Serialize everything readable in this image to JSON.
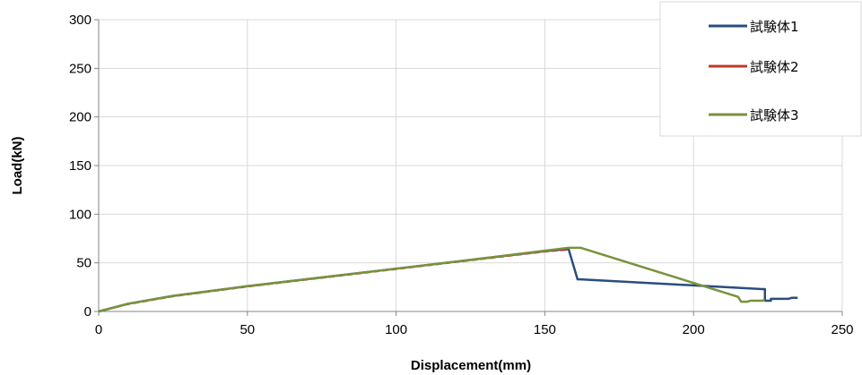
{
  "chart_data": {
    "type": "line",
    "title": "",
    "xlabel": "Displacement(mm)",
    "ylabel": "Load(kN)",
    "xlim": [
      0,
      250
    ],
    "ylim": [
      0,
      300
    ],
    "xticks": [
      0,
      50,
      100,
      150,
      200,
      250
    ],
    "yticks": [
      0,
      50,
      100,
      150,
      200,
      250,
      300
    ],
    "grid": true,
    "legend_position": "top-right",
    "series": [
      {
        "name": "試験体1",
        "color": "#2a4d7f",
        "points": [
          [
            0,
            0
          ],
          [
            10,
            8
          ],
          [
            25,
            16
          ],
          [
            50,
            26
          ],
          [
            75,
            35
          ],
          [
            100,
            44
          ],
          [
            125,
            53
          ],
          [
            150,
            62
          ],
          [
            157,
            64
          ],
          [
            158,
            64
          ],
          [
            161,
            33
          ],
          [
            162,
            33
          ],
          [
            223,
            23
          ],
          [
            224,
            23
          ],
          [
            224,
            11
          ],
          [
            226,
            11
          ],
          [
            226,
            13
          ],
          [
            230,
            13
          ],
          [
            232,
            13
          ],
          [
            233,
            14
          ],
          [
            235,
            14
          ]
        ]
      },
      {
        "name": "試験体2",
        "color": "#c0392b",
        "points": [
          [
            0,
            0
          ],
          [
            10,
            7.5
          ],
          [
            25,
            15.5
          ],
          [
            50,
            25.5
          ],
          [
            75,
            34.5
          ],
          [
            100,
            43.5
          ],
          [
            125,
            52.5
          ],
          [
            150,
            61.5
          ],
          [
            158,
            63.5
          ]
        ]
      },
      {
        "name": "試験体3",
        "color": "#77933c",
        "points": [
          [
            0,
            0
          ],
          [
            10,
            8
          ],
          [
            25,
            16
          ],
          [
            50,
            26
          ],
          [
            75,
            35
          ],
          [
            100,
            44
          ],
          [
            125,
            53
          ],
          [
            150,
            62.5
          ],
          [
            158,
            65.5
          ],
          [
            162,
            65.5
          ],
          [
            215,
            15
          ],
          [
            216,
            10
          ],
          [
            218,
            10
          ],
          [
            219,
            11
          ],
          [
            223,
            11
          ],
          [
            224,
            12
          ]
        ]
      }
    ]
  }
}
